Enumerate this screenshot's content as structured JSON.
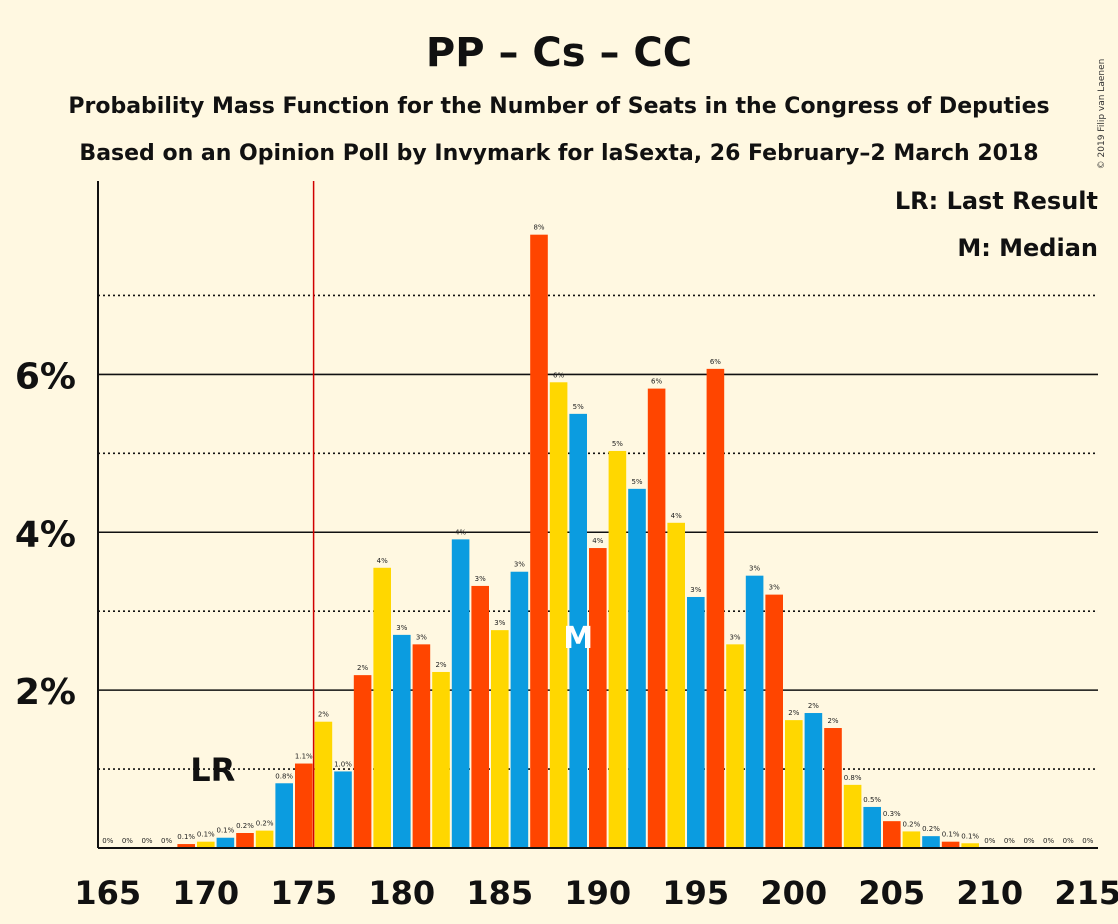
{
  "title": "PP – Cs – CC",
  "subtitle1": "Probability Mass Function for the Number of Seats in the Congress of Deputies",
  "subtitle2": "Based on an Opinion Poll by Invymark for laSexta, 26 February–2 March 2018",
  "copyright": "© 2019 Filip van Laenen",
  "legend": {
    "lr": "LR: Last Result",
    "m": "M: Median"
  },
  "markers": {
    "lr_text": "LR",
    "lr_seats": 176,
    "median_text": "M",
    "median_seats": 189
  },
  "colors": {
    "background": "#fff8e1",
    "pp": "#0b9ce0",
    "cs": "#ff4500",
    "cc": "#ffd700",
    "lr_line": "#d00000"
  },
  "chart_data": {
    "type": "bar",
    "xlabel": "",
    "ylabel": "",
    "x_range": [
      165,
      215
    ],
    "x_ticks": [
      165,
      170,
      175,
      180,
      185,
      190,
      195,
      200,
      205,
      210,
      215
    ],
    "y_range": [
      0,
      8.45
    ],
    "y_ticks_major": [
      2,
      4,
      6
    ],
    "y_tick_labels": [
      "2%",
      "4%",
      "6%"
    ],
    "y_ticks_minor": [
      1,
      3,
      5,
      7
    ],
    "grid": true,
    "legend_position": "top-right",
    "seats": [
      165,
      166,
      167,
      168,
      169,
      170,
      171,
      172,
      173,
      174,
      175,
      176,
      177,
      178,
      179,
      180,
      181,
      182,
      183,
      184,
      185,
      186,
      187,
      188,
      189,
      190,
      191,
      192,
      193,
      194,
      195,
      196,
      197,
      198,
      199,
      200,
      201,
      202,
      203,
      204,
      205,
      206,
      207,
      208,
      209,
      210,
      211,
      212,
      213,
      214,
      215
    ],
    "values": [
      0,
      0,
      0,
      0,
      0.05,
      0.08,
      0.13,
      0.19,
      0.22,
      0.82,
      1.07,
      1.6,
      0.97,
      2.19,
      3.55,
      2.7,
      2.58,
      2.23,
      3.91,
      3.32,
      2.76,
      3.5,
      7.77,
      5.9,
      5.5,
      3.8,
      5.03,
      4.55,
      5.82,
      4.12,
      3.18,
      6.07,
      2.58,
      3.45,
      3.21,
      1.62,
      1.71,
      1.52,
      0.8,
      0.52,
      0.34,
      0.21,
      0.15,
      0.08,
      0.06,
      0,
      0,
      0,
      0,
      0,
      0
    ],
    "labels": [
      "0%",
      "0%",
      "0%",
      "0%",
      "0.1%",
      "0.1%",
      "0.1%",
      "0.2%",
      "0.2%",
      "0.8%",
      "1.1%",
      "2%",
      "1.0%",
      "2%",
      "4%",
      "3%",
      "3%",
      "2%",
      "4%",
      "3%",
      "3%",
      "3%",
      "8%",
      "6%",
      "5%",
      "4%",
      "5%",
      "5%",
      "6%",
      "4%",
      "3%",
      "6%",
      "3%",
      "3%",
      "3%",
      "2%",
      "2%",
      "2%",
      "0.8%",
      "0.5%",
      "0.3%",
      "0.2%",
      "0.2%",
      "0.1%",
      "0.1%",
      "0%",
      "0%",
      "0%",
      "0%",
      "0%",
      "0%"
    ]
  }
}
